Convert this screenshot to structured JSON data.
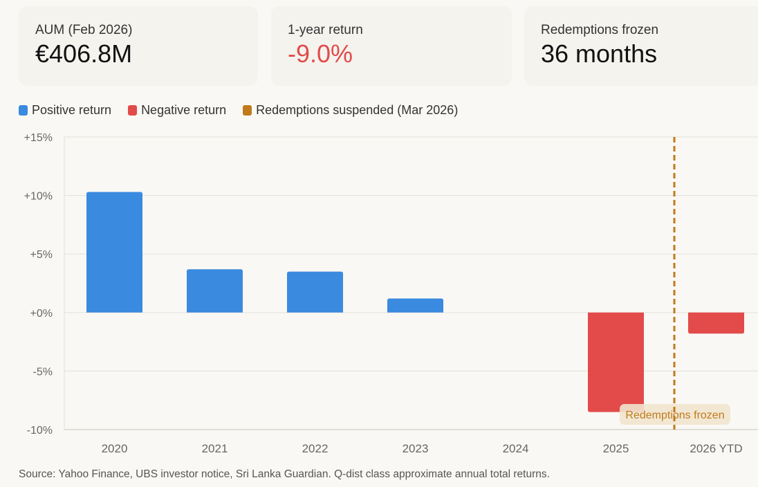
{
  "cards": [
    {
      "label": "AUM (Feb 2026)",
      "value": "€406.8M",
      "negative": false
    },
    {
      "label": "1-year return",
      "value": "-9.0%",
      "negative": true
    },
    {
      "label": "Redemptions frozen",
      "value": "36 months",
      "negative": false
    }
  ],
  "colors": {
    "positive": "#3a8ae0",
    "negative": "#e24b4a",
    "suspended": "#c07a1a",
    "annotation_bg": "#f1e4cf",
    "grid": "#e6e4df"
  },
  "chart_data": {
    "type": "bar",
    "categories": [
      "2020",
      "2021",
      "2022",
      "2023",
      "2024",
      "2025",
      "2026 YTD"
    ],
    "values": [
      10.3,
      3.7,
      3.5,
      1.2,
      0,
      -8.5,
      -1.8
    ],
    "ylim": [
      -10,
      15
    ],
    "yticks": [
      -10,
      -5,
      0,
      5,
      10,
      15
    ],
    "ytick_labels": [
      "-10%",
      "-5%",
      "+0%",
      "+5%",
      "+10%",
      "+15%"
    ],
    "grid": true,
    "legend": {
      "placement": "top-left",
      "entries": [
        "Positive return",
        "Negative return",
        "Redemptions suspended (Mar 2026)"
      ]
    },
    "event_line": {
      "label": "Redemptions suspended (Mar 2026)",
      "position": "Mar 2026",
      "annotation": "Redemptions frozen"
    }
  },
  "source": "Source: Yahoo Finance, UBS investor notice, Sri Lanka Guardian. Q-dist class approximate annual total returns."
}
